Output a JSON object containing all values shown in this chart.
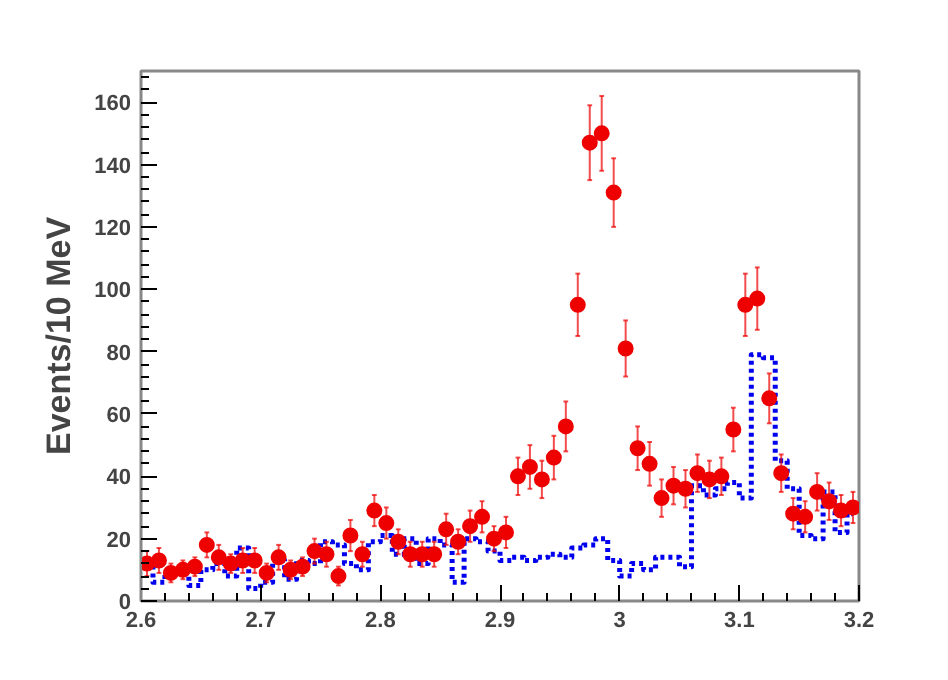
{
  "chart_data": {
    "type": "scatter",
    "ylabel": "Events/10 MeV",
    "xlim": [
      2.6,
      3.2
    ],
    "xticks": [
      2.6,
      2.7,
      2.8,
      2.9,
      {
        "value": 3.0,
        "label": "3"
      },
      3.1,
      3.2
    ],
    "ylim": [
      0,
      170
    ],
    "yticks": [
      0,
      20,
      40,
      60,
      80,
      100,
      120,
      140,
      160
    ],
    "grid": false,
    "series": [
      {
        "type": "step",
        "color": "#0000ee",
        "line_style": "dotted",
        "x": [
          2.605,
          2.615,
          2.625,
          2.635,
          2.645,
          2.655,
          2.665,
          2.675,
          2.685,
          2.695,
          2.705,
          2.715,
          2.725,
          2.735,
          2.745,
          2.755,
          2.765,
          2.775,
          2.785,
          2.795,
          2.805,
          2.815,
          2.825,
          2.835,
          2.845,
          2.855,
          2.865,
          2.875,
          2.885,
          2.895,
          2.905,
          2.915,
          2.925,
          2.935,
          2.945,
          2.955,
          2.965,
          2.975,
          2.985,
          2.995,
          3.005,
          3.015,
          3.025,
          3.035,
          3.045,
          3.055,
          3.065,
          3.075,
          3.085,
          3.095,
          3.105,
          3.115,
          3.125,
          3.135,
          3.145,
          3.155,
          3.165,
          3.175,
          3.185,
          3.195
        ],
        "values": [
          12,
          6,
          9,
          10,
          5,
          10,
          12,
          8,
          17,
          4,
          6,
          13,
          7,
          13,
          12,
          19,
          18,
          12,
          10,
          19,
          21,
          15,
          20,
          12,
          20,
          18,
          6,
          20,
          19,
          16,
          13,
          14,
          13,
          14,
          15,
          14,
          17,
          18,
          20,
          13,
          8,
          12,
          10,
          14,
          14,
          11,
          37,
          34,
          36,
          38,
          33,
          79,
          78,
          45,
          36,
          21,
          20,
          35,
          22,
          28
        ]
      },
      {
        "color": "#ee0000",
        "marker": "circle",
        "x": [
          2.605,
          2.615,
          2.625,
          2.635,
          2.645,
          2.655,
          2.665,
          2.675,
          2.685,
          2.695,
          2.705,
          2.715,
          2.725,
          2.735,
          2.745,
          2.755,
          2.765,
          2.775,
          2.785,
          2.795,
          2.805,
          2.815,
          2.825,
          2.835,
          2.845,
          2.855,
          2.865,
          2.875,
          2.885,
          2.895,
          2.905,
          2.915,
          2.925,
          2.935,
          2.945,
          2.955,
          2.965,
          2.975,
          2.985,
          2.995,
          3.005,
          3.015,
          3.025,
          3.035,
          3.045,
          3.055,
          3.065,
          3.075,
          3.085,
          3.095,
          3.105,
          3.115,
          3.125,
          3.135,
          3.145,
          3.155,
          3.165,
          3.175,
          3.185,
          3.195
        ],
        "values": [
          12,
          13,
          9,
          10,
          11,
          18,
          14,
          12,
          13,
          13,
          9,
          14,
          10,
          11,
          16,
          15,
          8,
          21,
          15,
          29,
          25,
          19,
          15,
          15,
          15,
          23,
          19,
          24,
          27,
          20,
          22,
          40,
          43,
          39,
          46,
          56,
          95,
          147,
          150,
          131,
          81,
          49,
          44,
          33,
          37,
          36,
          41,
          39,
          40,
          55,
          95,
          97,
          65,
          41,
          28,
          27,
          35,
          32,
          29,
          30
        ],
        "errors": [
          4,
          4,
          3,
          3,
          3,
          4,
          4,
          3,
          4,
          4,
          3,
          4,
          3,
          3,
          4,
          4,
          3,
          5,
          4,
          5,
          5,
          4,
          4,
          4,
          4,
          5,
          4,
          5,
          5,
          4,
          5,
          6,
          7,
          6,
          7,
          8,
          10,
          12,
          12,
          11,
          9,
          7,
          7,
          6,
          6,
          6,
          6,
          6,
          6,
          7,
          10,
          10,
          8,
          6,
          5,
          5,
          6,
          6,
          5,
          5
        ]
      }
    ]
  }
}
